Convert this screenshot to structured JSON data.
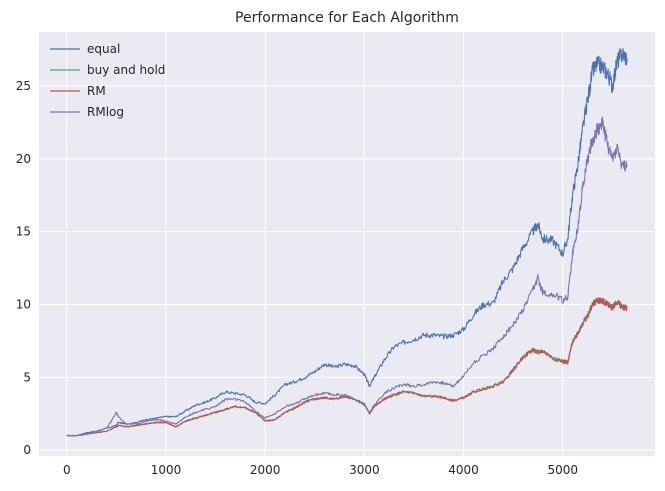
{
  "chart_data": {
    "type": "line",
    "title": "Performance for Each Algorithm",
    "xlabel": "",
    "ylabel": "",
    "xlim": [
      -280,
      5930
    ],
    "ylim": [
      -0.4,
      28.7
    ],
    "xticks": [
      0,
      1000,
      2000,
      3000,
      4000,
      5000
    ],
    "yticks": [
      0,
      5,
      10,
      15,
      20,
      25
    ],
    "grid": true,
    "legend": "top-left",
    "colors": {
      "background": "#eaeaf2",
      "grid": "#ffffff",
      "text": "#262626"
    },
    "series": [
      {
        "name": "equal",
        "color": "#4c72b0",
        "x": [
          0,
          100,
          200,
          300,
          400,
          500,
          520,
          600,
          700,
          800,
          900,
          1000,
          1100,
          1200,
          1300,
          1400,
          1500,
          1600,
          1700,
          1800,
          1900,
          2000,
          2100,
          2200,
          2300,
          2400,
          2500,
          2600,
          2700,
          2800,
          2900,
          3000,
          3050,
          3100,
          3200,
          3300,
          3400,
          3500,
          3600,
          3700,
          3800,
          3900,
          4000,
          4100,
          4200,
          4300,
          4400,
          4500,
          4600,
          4700,
          4750,
          4800,
          4900,
          5000,
          5050,
          5100,
          5150,
          5200,
          5250,
          5300,
          5350,
          5400,
          5450,
          5500,
          5550,
          5600,
          5650
        ],
        "values": [
          1.0,
          1.0,
          1.2,
          1.3,
          1.5,
          1.7,
          1.9,
          1.8,
          1.9,
          2.1,
          2.2,
          2.3,
          2.3,
          2.7,
          3.1,
          3.3,
          3.6,
          4.0,
          3.9,
          3.8,
          3.3,
          3.2,
          3.8,
          4.5,
          4.7,
          5.0,
          5.4,
          5.9,
          5.7,
          5.9,
          5.8,
          5.2,
          4.4,
          5.0,
          6.2,
          7.1,
          7.4,
          7.6,
          7.9,
          7.9,
          7.8,
          7.9,
          8.3,
          9.3,
          10.0,
          10.1,
          11.6,
          12.5,
          13.9,
          15.0,
          15.5,
          14.5,
          14.4,
          13.5,
          14.5,
          17.6,
          19.5,
          22.0,
          24.0,
          26.0,
          26.5,
          26.3,
          25.9,
          25.0,
          26.7,
          27.2,
          26.9
        ]
      },
      {
        "name": "buy and hold",
        "color": "#55a868",
        "x": [
          0,
          100,
          200,
          300,
          400,
          500,
          520,
          600,
          700,
          800,
          900,
          1000,
          1100,
          1200,
          1300,
          1400,
          1500,
          1600,
          1700,
          1800,
          1900,
          2000,
          2100,
          2200,
          2300,
          2400,
          2500,
          2600,
          2700,
          2800,
          2900,
          3000,
          3050,
          3100,
          3200,
          3300,
          3400,
          3500,
          3600,
          3700,
          3800,
          3900,
          4000,
          4100,
          4200,
          4300,
          4400,
          4500,
          4600,
          4700,
          4750,
          4800,
          4900,
          5000,
          5050,
          5100,
          5150,
          5200,
          5250,
          5300,
          5350,
          5400,
          5450,
          5500,
          5550,
          5600,
          5650
        ],
        "values": [
          1.0,
          1.0,
          1.1,
          1.2,
          1.3,
          1.6,
          1.7,
          1.6,
          1.7,
          1.8,
          1.9,
          1.9,
          1.6,
          2.0,
          2.2,
          2.4,
          2.6,
          2.8,
          3.0,
          2.9,
          2.6,
          2.0,
          2.1,
          2.6,
          2.9,
          3.3,
          3.5,
          3.6,
          3.5,
          3.7,
          3.5,
          3.2,
          2.5,
          3.0,
          3.5,
          3.8,
          4.0,
          3.9,
          3.7,
          3.7,
          3.6,
          3.4,
          3.6,
          4.0,
          4.2,
          4.4,
          4.7,
          5.5,
          6.4,
          6.9,
          6.7,
          6.8,
          6.3,
          6.1,
          6.0,
          7.5,
          8.0,
          8.7,
          9.2,
          10.0,
          10.3,
          10.2,
          10.1,
          9.8,
          10.2,
          9.8,
          9.8
        ]
      },
      {
        "name": "RM",
        "color": "#c44e52",
        "x": [
          0,
          100,
          200,
          300,
          400,
          500,
          520,
          600,
          700,
          800,
          900,
          1000,
          1100,
          1200,
          1300,
          1400,
          1500,
          1600,
          1700,
          1800,
          1900,
          2000,
          2100,
          2200,
          2300,
          2400,
          2500,
          2600,
          2700,
          2800,
          2900,
          3000,
          3050,
          3100,
          3200,
          3300,
          3400,
          3500,
          3600,
          3700,
          3800,
          3900,
          4000,
          4100,
          4200,
          4300,
          4400,
          4500,
          4600,
          4700,
          4750,
          4800,
          4900,
          5000,
          5050,
          5100,
          5150,
          5200,
          5250,
          5300,
          5350,
          5400,
          5450,
          5500,
          5550,
          5600,
          5650
        ],
        "values": [
          1.0,
          1.0,
          1.1,
          1.2,
          1.3,
          1.6,
          1.7,
          1.6,
          1.7,
          1.8,
          1.9,
          1.9,
          1.6,
          2.0,
          2.2,
          2.4,
          2.6,
          2.8,
          3.0,
          2.9,
          2.6,
          2.0,
          2.1,
          2.6,
          2.9,
          3.3,
          3.5,
          3.6,
          3.5,
          3.7,
          3.5,
          3.2,
          2.5,
          3.0,
          3.5,
          3.8,
          4.0,
          3.9,
          3.7,
          3.7,
          3.6,
          3.4,
          3.6,
          4.0,
          4.2,
          4.4,
          4.7,
          5.5,
          6.4,
          6.9,
          6.7,
          6.8,
          6.3,
          6.1,
          6.0,
          7.5,
          8.0,
          8.7,
          9.2,
          10.0,
          10.3,
          10.2,
          10.1,
          9.8,
          10.2,
          9.8,
          9.8
        ]
      },
      {
        "name": "RMlog",
        "color": "#8172b2",
        "x": [
          0,
          100,
          200,
          300,
          400,
          450,
          500,
          520,
          600,
          700,
          800,
          900,
          1000,
          1100,
          1200,
          1300,
          1400,
          1500,
          1600,
          1700,
          1800,
          1900,
          2000,
          2100,
          2200,
          2300,
          2400,
          2500,
          2600,
          2700,
          2800,
          2900,
          3000,
          3050,
          3100,
          3200,
          3300,
          3400,
          3500,
          3600,
          3700,
          3800,
          3900,
          4000,
          4100,
          4200,
          4300,
          4400,
          4500,
          4600,
          4700,
          4750,
          4800,
          4900,
          5000,
          5050,
          5100,
          5150,
          5200,
          5250,
          5300,
          5350,
          5400,
          5450,
          5500,
          5550,
          5600,
          5650
        ],
        "values": [
          1.0,
          1.0,
          1.1,
          1.3,
          1.5,
          2.0,
          2.6,
          2.3,
          1.8,
          1.8,
          2.0,
          2.1,
          2.0,
          1.8,
          2.3,
          2.6,
          2.8,
          3.0,
          3.5,
          3.5,
          3.3,
          2.7,
          2.2,
          2.5,
          3.0,
          3.2,
          3.5,
          3.8,
          3.9,
          3.8,
          3.8,
          3.5,
          3.1,
          2.6,
          3.1,
          3.9,
          4.3,
          4.5,
          4.4,
          4.5,
          4.7,
          4.6,
          4.4,
          5.1,
          6.0,
          6.5,
          7.0,
          7.8,
          8.6,
          9.6,
          11.0,
          11.8,
          10.8,
          10.7,
          10.3,
          10.5,
          13.5,
          15.2,
          18.0,
          20.0,
          21.3,
          22.0,
          22.5,
          21.0,
          20.0,
          20.8,
          19.4,
          19.6
        ]
      }
    ]
  }
}
